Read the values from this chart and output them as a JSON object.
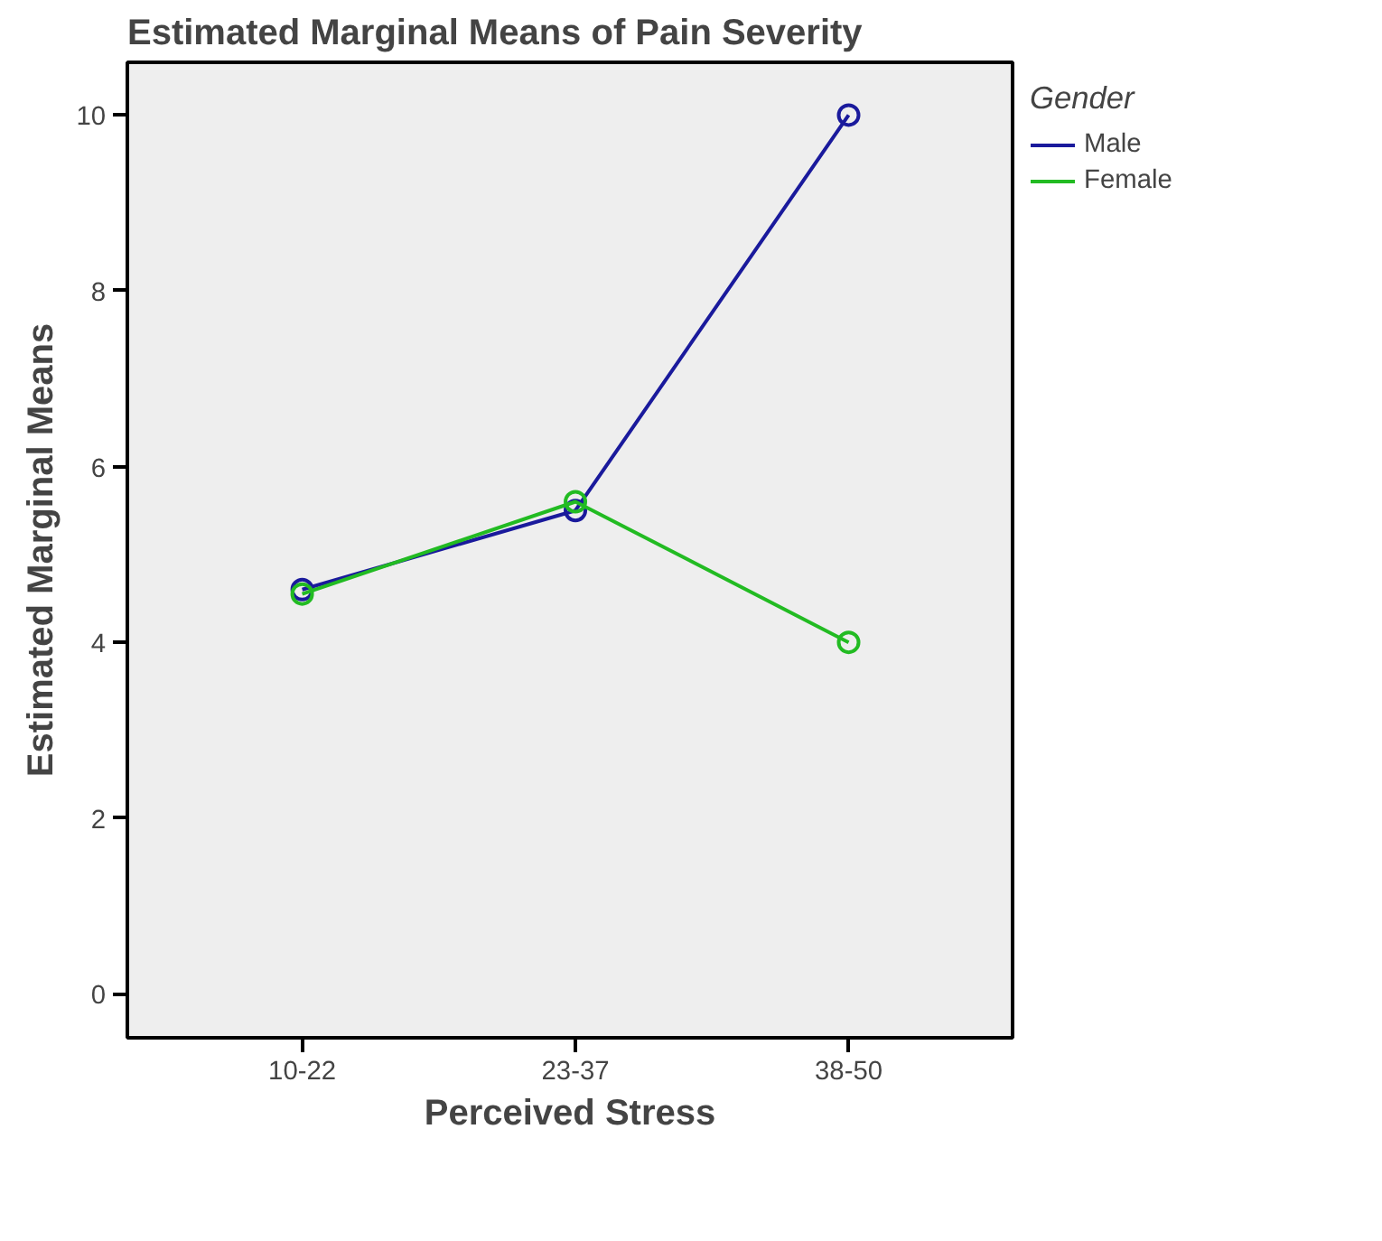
{
  "chart_data": {
    "type": "line",
    "title": "Estimated Marginal Means of Pain Severity",
    "xlabel": "Perceived Stress",
    "ylabel": "Estimated Marginal Means",
    "legend_title": "Gender",
    "categories": [
      "10-22",
      "23-37",
      "38-50"
    ],
    "series": [
      {
        "name": "Male",
        "color": "#1a1a9c",
        "values": [
          4.6,
          5.5,
          10.0
        ]
      },
      {
        "name": "Female",
        "color": "#22bb22",
        "values": [
          4.55,
          5.6,
          4.0
        ]
      }
    ],
    "ylim": [
      -0.5,
      10.6
    ],
    "yticks": [
      0,
      2,
      4,
      6,
      8,
      10
    ],
    "grid": false,
    "legend": "right",
    "marker": "circle",
    "line_style": "solid"
  }
}
